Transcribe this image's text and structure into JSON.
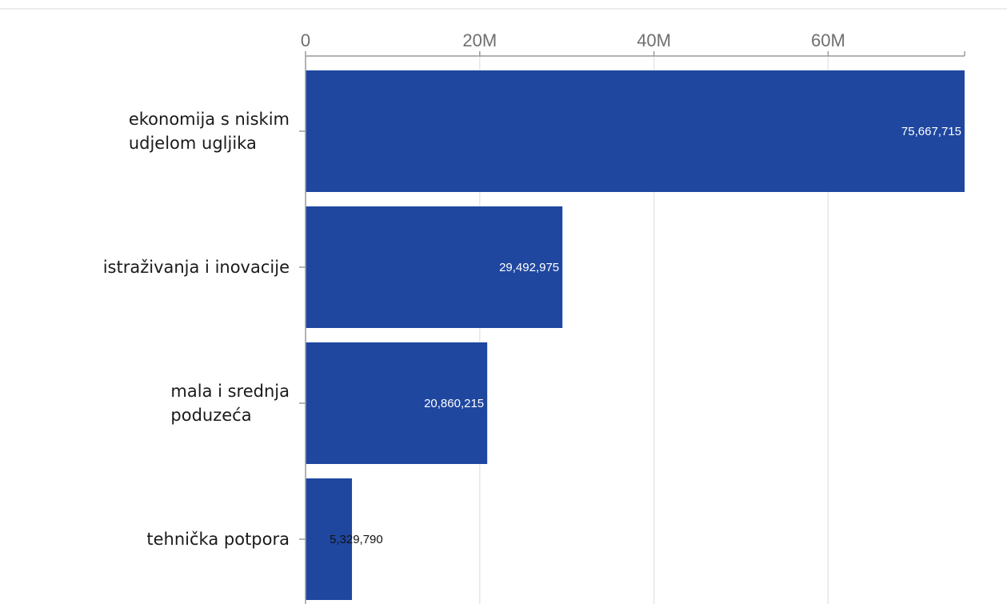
{
  "chart_data": {
    "type": "bar",
    "orientation": "horizontal",
    "categories": [
      [
        "ekonomija s niskim",
        "udjelom ugljika"
      ],
      [
        "istraživanja i inovacije"
      ],
      [
        "mala i srednja",
        "poduzeća"
      ],
      [
        "tehnička potpora"
      ]
    ],
    "values": [
      75667715,
      29492975,
      20860215,
      5329790
    ],
    "data_labels": [
      "75,667,715",
      "29,492,975",
      "20,860,215",
      "5,329,790"
    ],
    "xlim": [
      0,
      75667715
    ],
    "x_ticks": [
      0,
      20000000,
      40000000,
      60000000
    ],
    "x_tick_labels": [
      "0",
      "20M",
      "40M",
      "60M"
    ],
    "axis_position": "top",
    "grid": true,
    "legend": "none",
    "title": "",
    "xlabel": "",
    "ylabel": "",
    "colors": {
      "bar": "#1f47a0",
      "grid": "#e6e6e6",
      "axis": "#9a9a9a",
      "label_inside": "#ffffff",
      "label_outside": "#111111"
    }
  }
}
